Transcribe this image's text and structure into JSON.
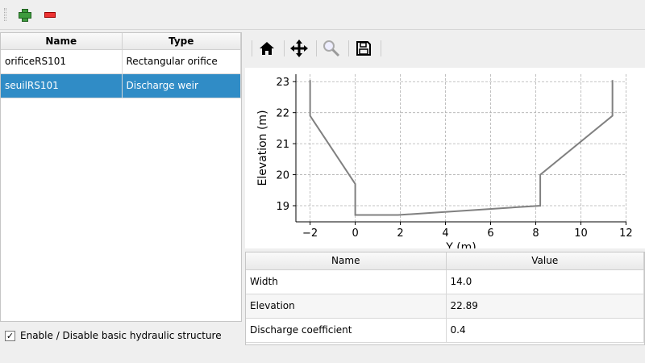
{
  "toolbar": {
    "add_icon": "plus-icon",
    "remove_icon": "minus-icon"
  },
  "structures": {
    "headers": [
      "Name",
      "Type"
    ],
    "rows": [
      {
        "name": "orificeRS101",
        "type": "Rectangular orifice",
        "selected": false
      },
      {
        "name": "seuilRS101",
        "type": "Discharge weir",
        "selected": true
      }
    ]
  },
  "enable_checkbox": {
    "label": "Enable / Disable basic hydraulic structure",
    "checked": true
  },
  "plot_toolbar": {
    "icons": [
      "home-icon",
      "pan-icon",
      "zoom-icon",
      "save-icon"
    ]
  },
  "parameters": {
    "headers": [
      "Name",
      "Value"
    ],
    "rows": [
      {
        "name": "Width",
        "value": "14.0"
      },
      {
        "name": "Elevation",
        "value": "22.89"
      },
      {
        "name": "Discharge coefficient",
        "value": "0.4"
      }
    ]
  },
  "chart_data": {
    "type": "line",
    "xlabel": "Y (m)",
    "ylabel": "Elevation (m)",
    "xlim": [
      -2.63,
      12.02
    ],
    "ylim": [
      18.48,
      23.24
    ],
    "xticks": [
      -2,
      0,
      2,
      4,
      6,
      8,
      10,
      12
    ],
    "xtick_labels": [
      "−2",
      "0",
      "2",
      "4",
      "6",
      "8",
      "10",
      "12"
    ],
    "yticks": [
      19,
      20,
      21,
      22,
      23
    ],
    "ytick_labels": [
      "19",
      "20",
      "21",
      "22",
      "23"
    ],
    "grid": true,
    "line_color": "#808080",
    "series": [
      {
        "x": [
          -2,
          -2,
          0,
          0,
          1.9,
          8.2,
          8.2,
          11.4,
          11.4
        ],
        "y": [
          23.05,
          21.9,
          19.7,
          18.7,
          18.7,
          19.0,
          20.0,
          21.9,
          23.05
        ]
      }
    ]
  }
}
